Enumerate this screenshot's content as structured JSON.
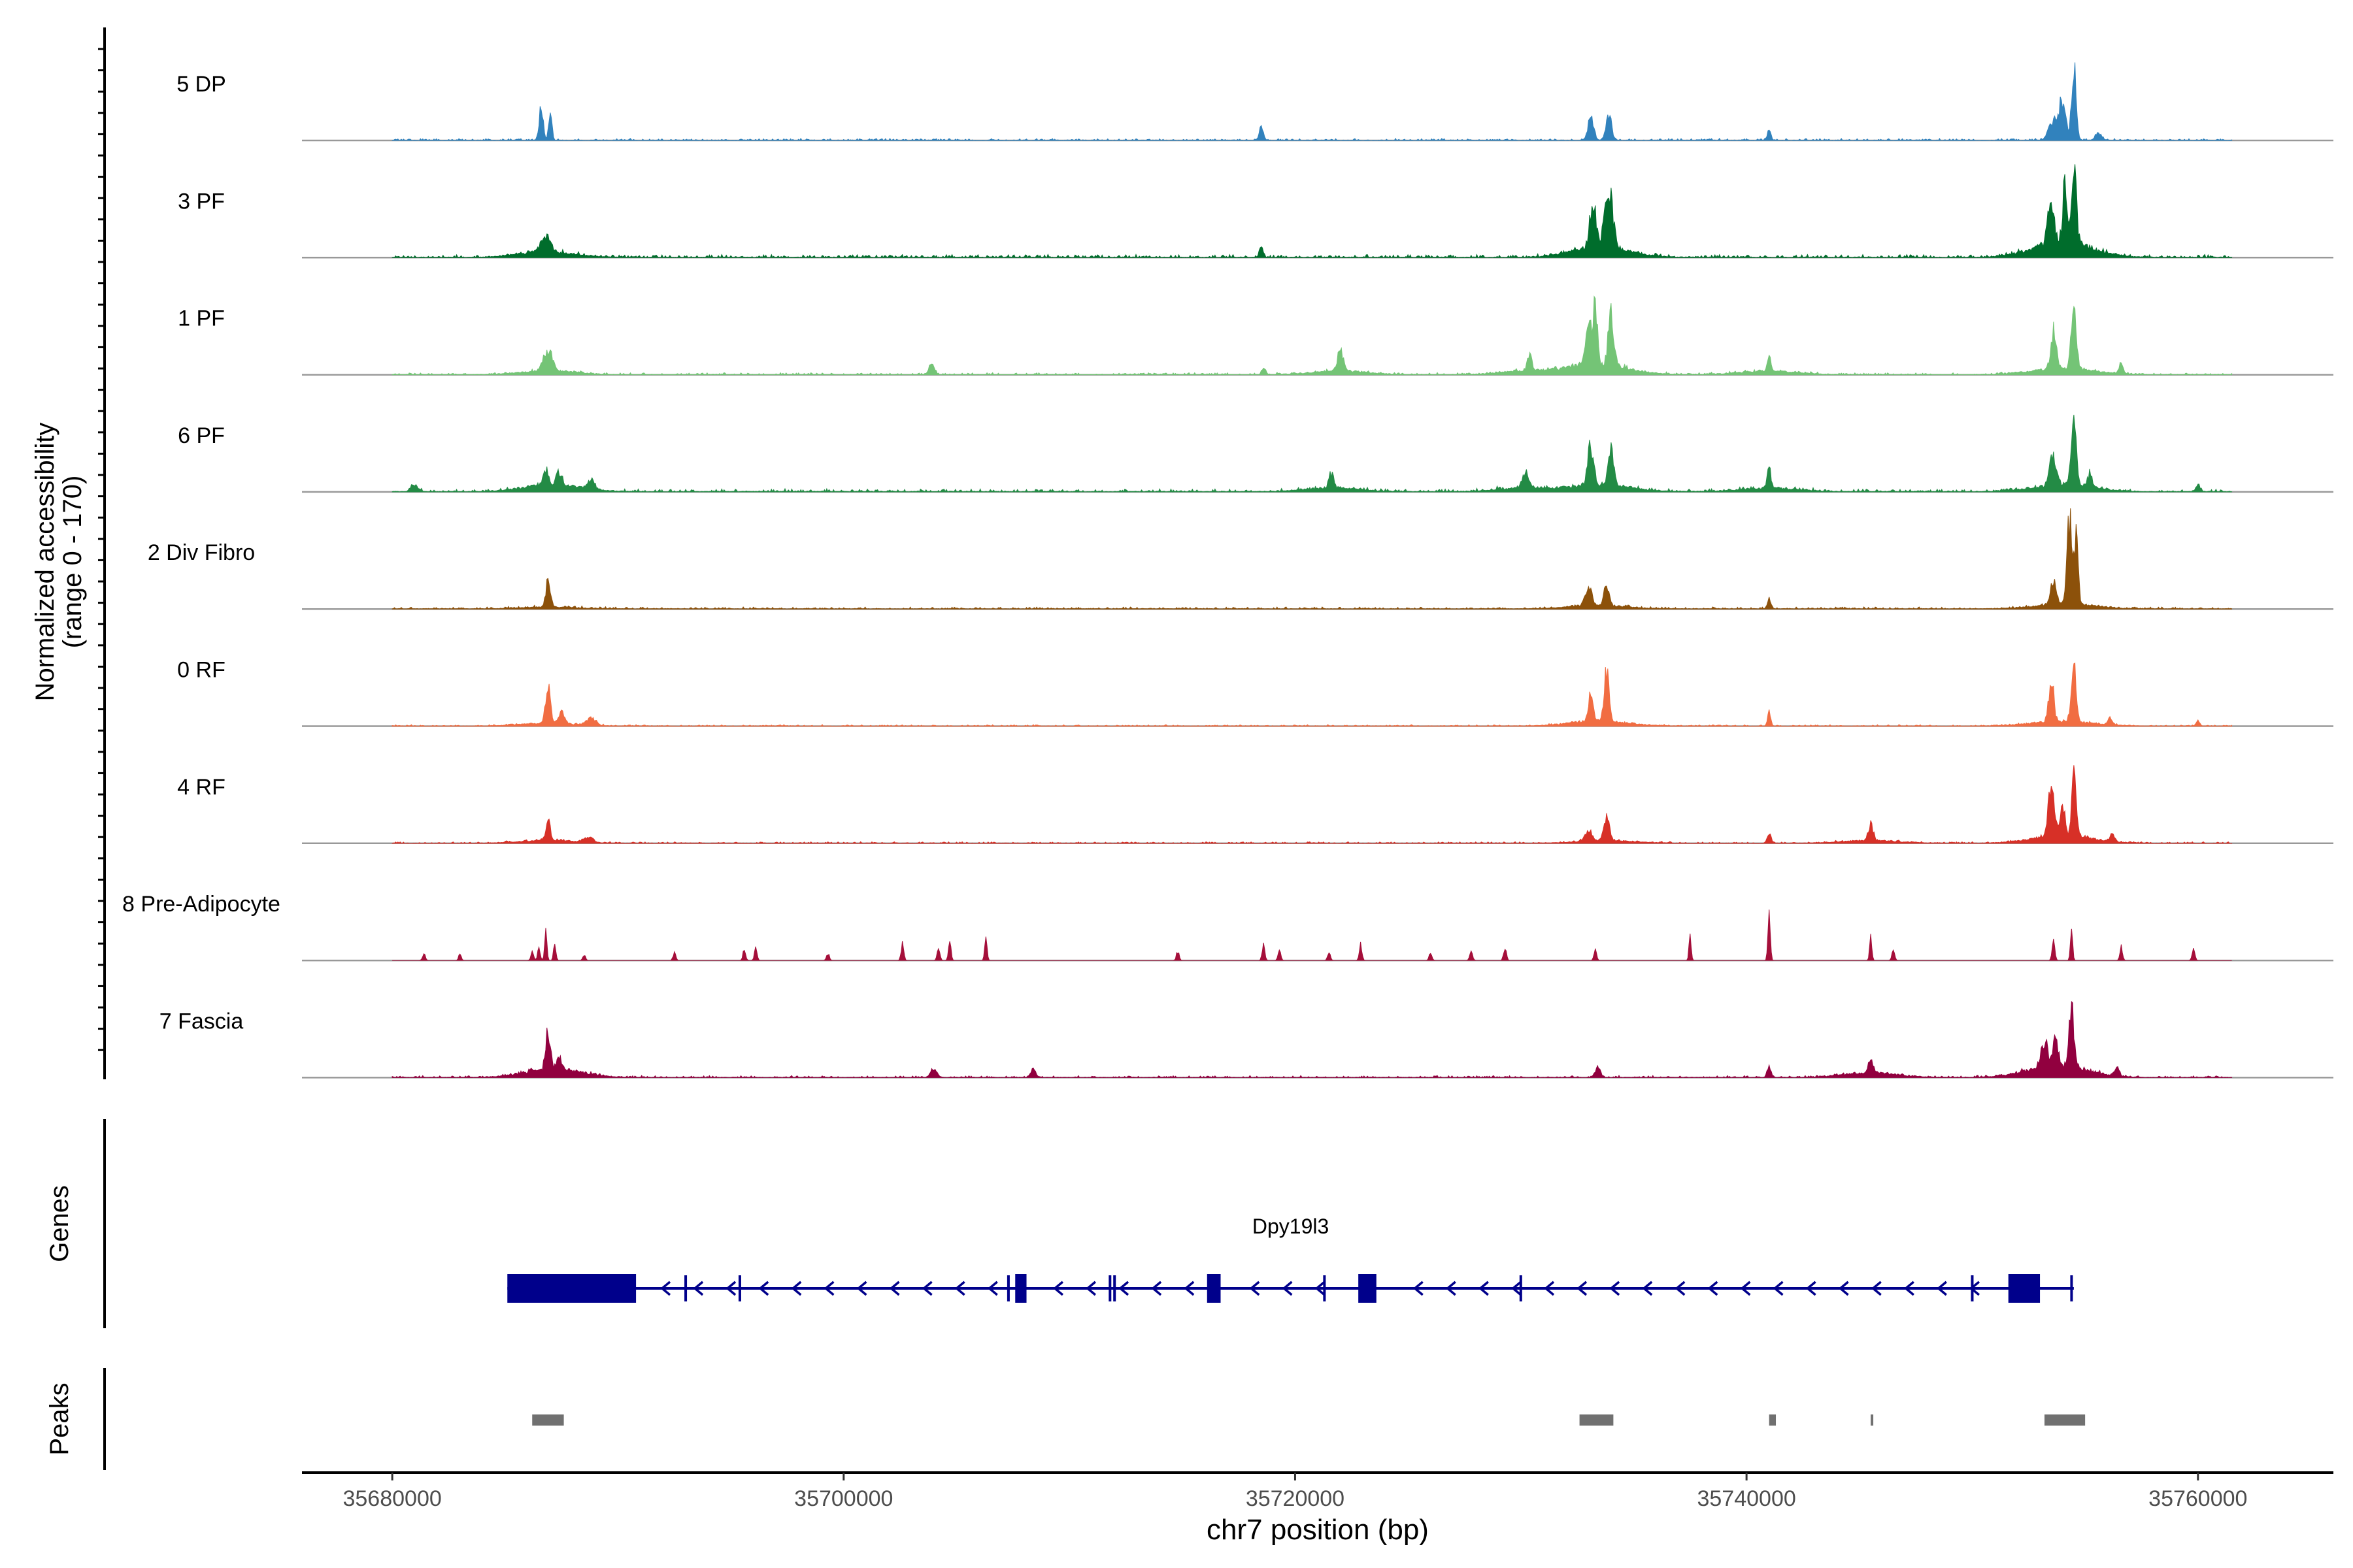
{
  "chart_data": {
    "type": "area",
    "title": "",
    "ylabel": "Normalized accessibility",
    "ylabel_range": "(range 0 - 170)",
    "ylim": [
      0,
      170
    ],
    "xlabel": "chr7 position (bp)",
    "xlim": [
      35676000,
      35766000
    ],
    "xticks": [
      35680000,
      35700000,
      35720000,
      35740000,
      35760000
    ],
    "xtick_labels": [
      "35680000",
      "35700000",
      "35720000",
      "35740000",
      "35760000"
    ],
    "genes_label": "Genes",
    "peaks_label": "Peaks",
    "gene": {
      "name": "Dpy19l3",
      "start": 35685100,
      "end": 35754500,
      "strand": "-",
      "exons": [
        [
          35685100,
          35690800
        ],
        [
          35707600,
          35708100
        ],
        [
          35716100,
          35716700
        ],
        [
          35722800,
          35723600
        ],
        [
          35751600,
          35753000
        ]
      ],
      "ticks": [
        35693000,
        35695400,
        35707300,
        35711800,
        35712000,
        35721300,
        35730000,
        35750000,
        35754400
      ]
    },
    "peaks": [
      [
        35686200,
        35687600
      ],
      [
        35732600,
        35734100
      ],
      [
        35741000,
        35741300
      ],
      [
        35745500,
        35745600
      ],
      [
        35753200,
        35755000
      ]
    ],
    "series": [
      {
        "name": "5 DP",
        "color": "#3182bd",
        "noise": 0.02,
        "wide": 0,
        "peaks": [
          [
            35686600,
            0.38,
            90
          ],
          [
            35687000,
            0.34,
            70
          ],
          [
            35718500,
            0.15,
            90
          ],
          [
            35733100,
            0.25,
            130
          ],
          [
            35733900,
            0.29,
            120
          ],
          [
            35741000,
            0.14,
            70
          ],
          [
            35753600,
            0.22,
            200
          ],
          [
            35754000,
            0.43,
            140
          ],
          [
            35754500,
            0.85,
            100
          ],
          [
            35755600,
            0.08,
            150
          ]
        ]
      },
      {
        "name": "3 PF",
        "color": "#006d2c",
        "noise": 0.03,
        "wide": 0.06,
        "peaks": [
          [
            35686800,
            0.2,
            200
          ],
          [
            35718500,
            0.12,
            80
          ],
          [
            35733200,
            0.5,
            140
          ],
          [
            35733900,
            0.65,
            180
          ],
          [
            35753500,
            0.5,
            140
          ],
          [
            35754100,
            0.62,
            100
          ],
          [
            35754500,
            0.9,
            110
          ]
        ]
      },
      {
        "name": "1 PF",
        "color": "#74c476",
        "noise": 0.02,
        "wide": 0.04,
        "peaks": [
          [
            35686900,
            0.23,
            200
          ],
          [
            35703900,
            0.1,
            120
          ],
          [
            35718600,
            0.08,
            80
          ],
          [
            35722000,
            0.25,
            120
          ],
          [
            35730400,
            0.2,
            90
          ],
          [
            35733000,
            0.55,
            120
          ],
          [
            35733300,
            0.65,
            90
          ],
          [
            35734000,
            0.6,
            120
          ],
          [
            35741000,
            0.18,
            70
          ],
          [
            35753600,
            0.4,
            120
          ],
          [
            35754500,
            0.75,
            110
          ],
          [
            35756600,
            0.12,
            80
          ]
        ]
      },
      {
        "name": "6 PF",
        "color": "#238b45",
        "noise": 0.03,
        "wide": 0.04,
        "peaks": [
          [
            35681000,
            0.08,
            150
          ],
          [
            35686800,
            0.16,
            120
          ],
          [
            35687400,
            0.16,
            110
          ],
          [
            35688800,
            0.1,
            140
          ],
          [
            35721600,
            0.16,
            100
          ],
          [
            35730200,
            0.16,
            150
          ],
          [
            35733100,
            0.45,
            130
          ],
          [
            35734000,
            0.43,
            120
          ],
          [
            35741000,
            0.22,
            80
          ],
          [
            35753600,
            0.35,
            150
          ],
          [
            35754500,
            0.8,
            110
          ],
          [
            35755200,
            0.15,
            110
          ],
          [
            35760000,
            0.08,
            90
          ]
        ]
      },
      {
        "name": "2 Div Fibro",
        "color": "#8c510a",
        "noise": 0.02,
        "wide": 0.02,
        "peaks": [
          [
            35686900,
            0.28,
            100
          ],
          [
            35733000,
            0.2,
            150
          ],
          [
            35733800,
            0.22,
            110
          ],
          [
            35741000,
            0.12,
            80
          ],
          [
            35753600,
            0.26,
            120
          ],
          [
            35754300,
            0.95,
            110
          ],
          [
            35754600,
            0.7,
            90
          ]
        ]
      },
      {
        "name": "0 RF",
        "color": "#f16d42",
        "noise": 0.015,
        "wide": 0.03,
        "peaks": [
          [
            35686900,
            0.45,
            100
          ],
          [
            35687500,
            0.14,
            130
          ],
          [
            35688800,
            0.08,
            200
          ],
          [
            35733100,
            0.3,
            100
          ],
          [
            35733800,
            0.55,
            110
          ],
          [
            35741000,
            0.15,
            70
          ],
          [
            35753500,
            0.48,
            110
          ],
          [
            35754500,
            0.58,
            110
          ],
          [
            35756100,
            0.08,
            90
          ],
          [
            35760000,
            0.06,
            80
          ]
        ]
      },
      {
        "name": "4 RF",
        "color": "#d73027",
        "noise": 0.015,
        "wide": 0.03,
        "peaks": [
          [
            35686900,
            0.23,
            100
          ],
          [
            35688700,
            0.06,
            200
          ],
          [
            35733000,
            0.12,
            150
          ],
          [
            35733800,
            0.25,
            120
          ],
          [
            35741000,
            0.12,
            80
          ],
          [
            35745500,
            0.2,
            100
          ],
          [
            35753500,
            0.6,
            130
          ],
          [
            35754000,
            0.38,
            90
          ],
          [
            35754500,
            0.67,
            100
          ],
          [
            35756200,
            0.08,
            100
          ]
        ]
      },
      {
        "name": "8 Pre-Adipocyte",
        "color": "#a50f3a",
        "noise": 0,
        "wide": 0,
        "peaks": [
          [
            35681400,
            0.08,
            60
          ],
          [
            35683000,
            0.07,
            60
          ],
          [
            35686200,
            0.1,
            60
          ],
          [
            35686500,
            0.14,
            60
          ],
          [
            35686800,
            0.35,
            50
          ],
          [
            35687200,
            0.2,
            50
          ],
          [
            35688500,
            0.07,
            60
          ],
          [
            35692500,
            0.09,
            60
          ],
          [
            35695600,
            0.12,
            60
          ],
          [
            35696100,
            0.13,
            60
          ],
          [
            35699300,
            0.08,
            60
          ],
          [
            35702600,
            0.18,
            60
          ],
          [
            35704200,
            0.14,
            60
          ],
          [
            35704700,
            0.18,
            60
          ],
          [
            35706300,
            0.29,
            50
          ],
          [
            35714800,
            0.1,
            60
          ],
          [
            35718600,
            0.17,
            60
          ],
          [
            35719300,
            0.12,
            60
          ],
          [
            35721500,
            0.1,
            60
          ],
          [
            35722900,
            0.17,
            60
          ],
          [
            35726000,
            0.1,
            60
          ],
          [
            35727800,
            0.13,
            60
          ],
          [
            35729300,
            0.16,
            60
          ],
          [
            35733300,
            0.11,
            60
          ],
          [
            35737500,
            0.25,
            50
          ],
          [
            35741000,
            0.62,
            50
          ],
          [
            35745500,
            0.24,
            50
          ],
          [
            35746500,
            0.11,
            60
          ],
          [
            35753600,
            0.22,
            60
          ],
          [
            35754400,
            0.29,
            50
          ],
          [
            35756600,
            0.16,
            60
          ],
          [
            35759800,
            0.13,
            60
          ]
        ]
      },
      {
        "name": "7 Fascia",
        "color": "#91003f",
        "noise": 0.02,
        "wide": 0.05,
        "peaks": [
          [
            35686900,
            0.45,
            100
          ],
          [
            35687400,
            0.18,
            100
          ],
          [
            35704000,
            0.08,
            150
          ],
          [
            35708400,
            0.09,
            110
          ],
          [
            35733400,
            0.12,
            110
          ],
          [
            35741000,
            0.14,
            80
          ],
          [
            35745500,
            0.18,
            90
          ],
          [
            35753200,
            0.28,
            140
          ],
          [
            35753700,
            0.3,
            110
          ],
          [
            35754400,
            0.65,
            110
          ],
          [
            35756400,
            0.1,
            100
          ]
        ]
      }
    ]
  }
}
